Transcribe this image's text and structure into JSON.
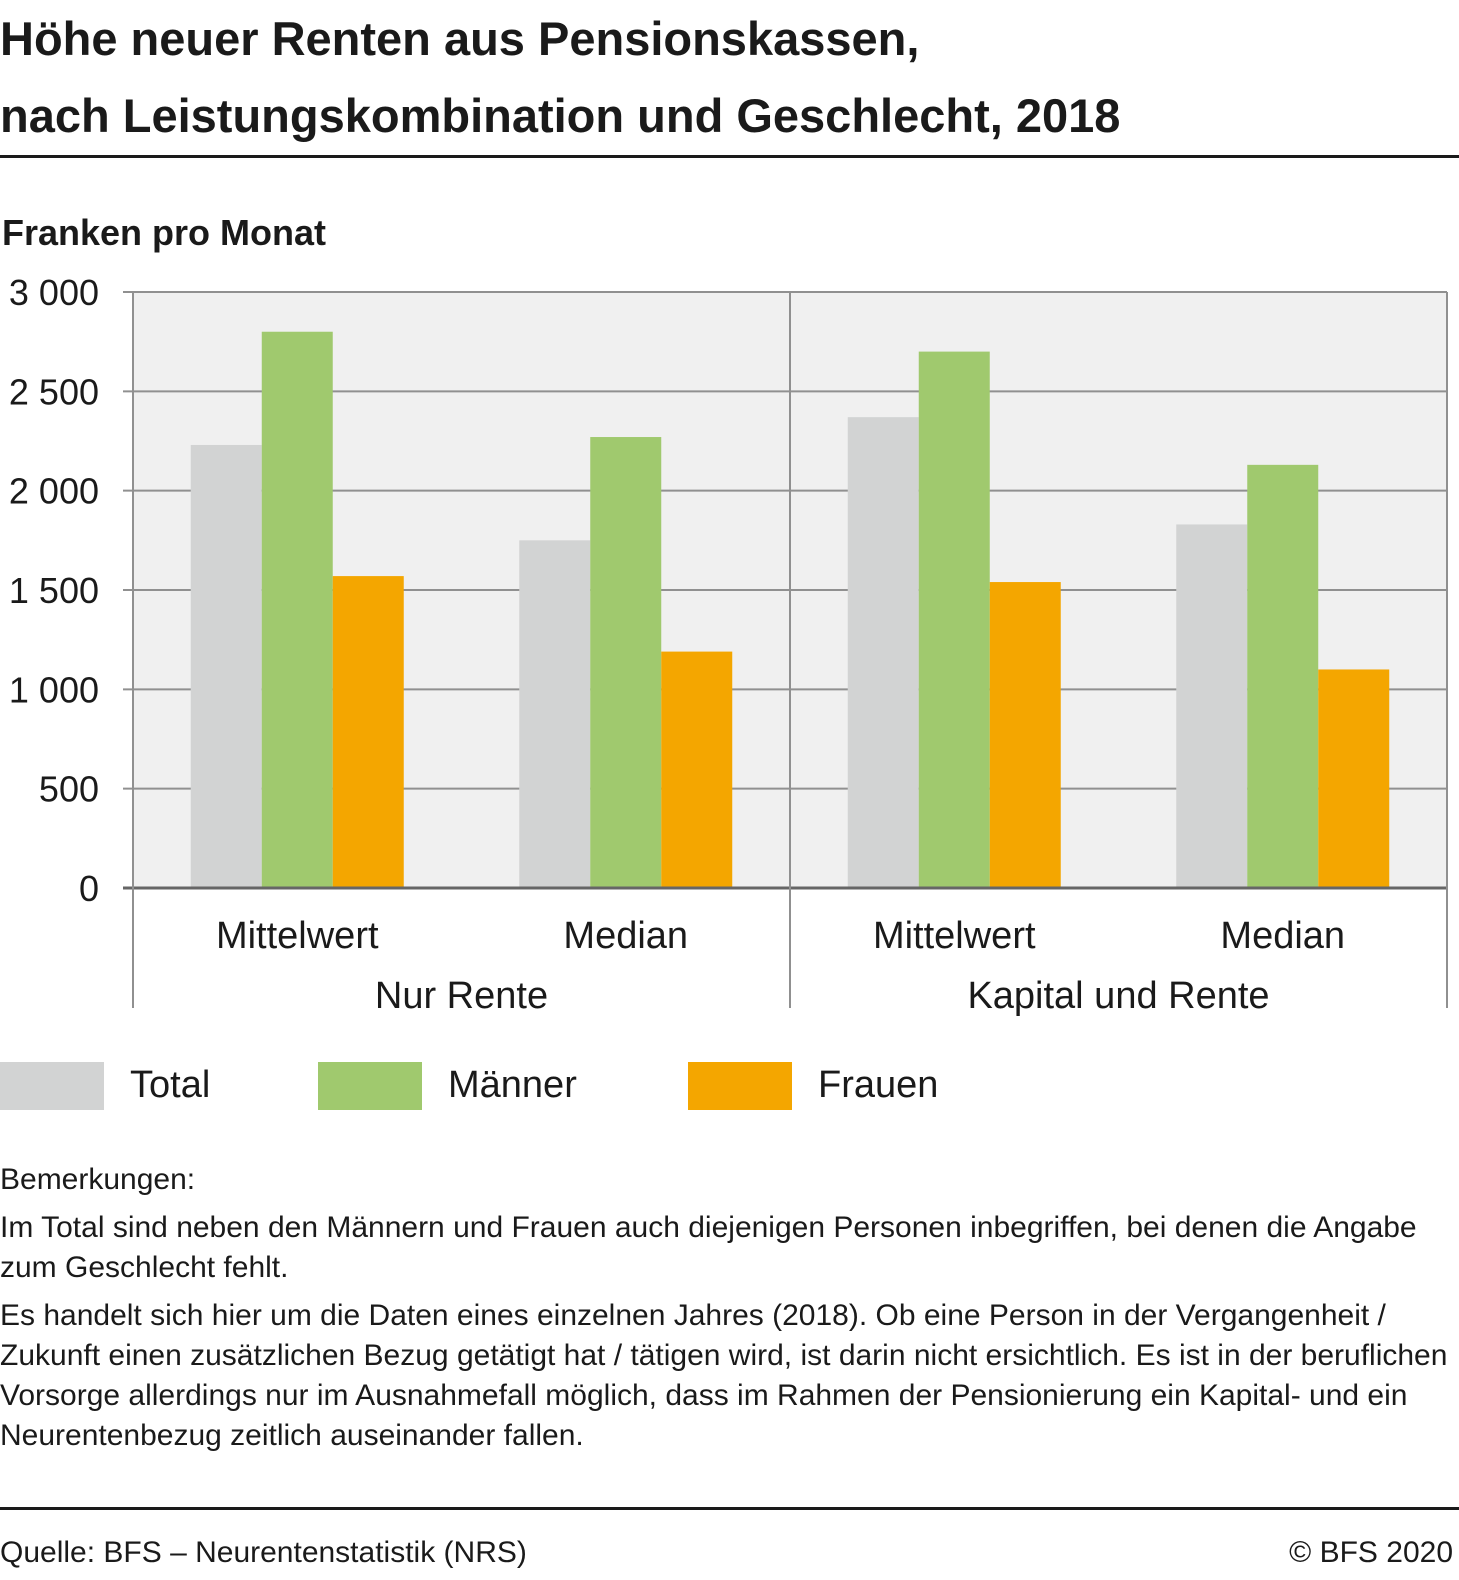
{
  "title": {
    "line1": "Höhe neuer Renten aus Pensionskassen,",
    "line2": "nach Leistungskombination und Geschlecht, 2018"
  },
  "chart_data": {
    "type": "bar",
    "ylabel": "Franken pro Monat",
    "ylim": [
      0,
      3000
    ],
    "yticks": [
      0,
      500,
      1000,
      1500,
      2000,
      2500,
      3000
    ],
    "ytick_labels": [
      "0",
      "500",
      "1 000",
      "1 500",
      "2 000",
      "2 500",
      "3 000"
    ],
    "grid": true,
    "legend_position": "bottom",
    "groups": [
      "Nur Rente",
      "Kapital und Rente"
    ],
    "categories": [
      "Mittelwert",
      "Median",
      "Mittelwert",
      "Median"
    ],
    "series": [
      {
        "name": "Total",
        "color": "#d2d3d3",
        "values": [
          2230,
          1750,
          2370,
          1830
        ]
      },
      {
        "name": "Männer",
        "color": "#a0c96e",
        "values": [
          2800,
          2270,
          2700,
          2130
        ]
      },
      {
        "name": "Frauen",
        "color": "#f4a600",
        "values": [
          1570,
          1190,
          1540,
          1100
        ]
      }
    ]
  },
  "legend": {
    "items": [
      {
        "label": "Total",
        "color": "#d2d3d3"
      },
      {
        "label": "Männer",
        "color": "#a0c96e"
      },
      {
        "label": "Frauen",
        "color": "#f4a600"
      }
    ]
  },
  "notes": {
    "heading": "Bemerkungen:",
    "para1": "Im Total sind neben den Männern und Frauen auch diejenigen Personen inbegriffen, bei denen die Angabe zum Geschlecht fehlt.",
    "para2": "Es handelt sich hier um die Daten eines einzelnen Jahres (2018). Ob eine Person in der Vergangenheit / Zukunft einen zusätzlichen Bezug getätigt hat / tätigen wird, ist darin nicht ersichtlich. Es ist in der beruflichen Vorsorge allerdings nur im Ausnahmefall möglich, dass im Rahmen der Pensionierung ein Kapital- und ein Neurentenbezug zeitlich auseinander fallen."
  },
  "footer": {
    "source": "Quelle: BFS – Neurentenstatistik (NRS)",
    "copyright": "© BFS 2020"
  }
}
